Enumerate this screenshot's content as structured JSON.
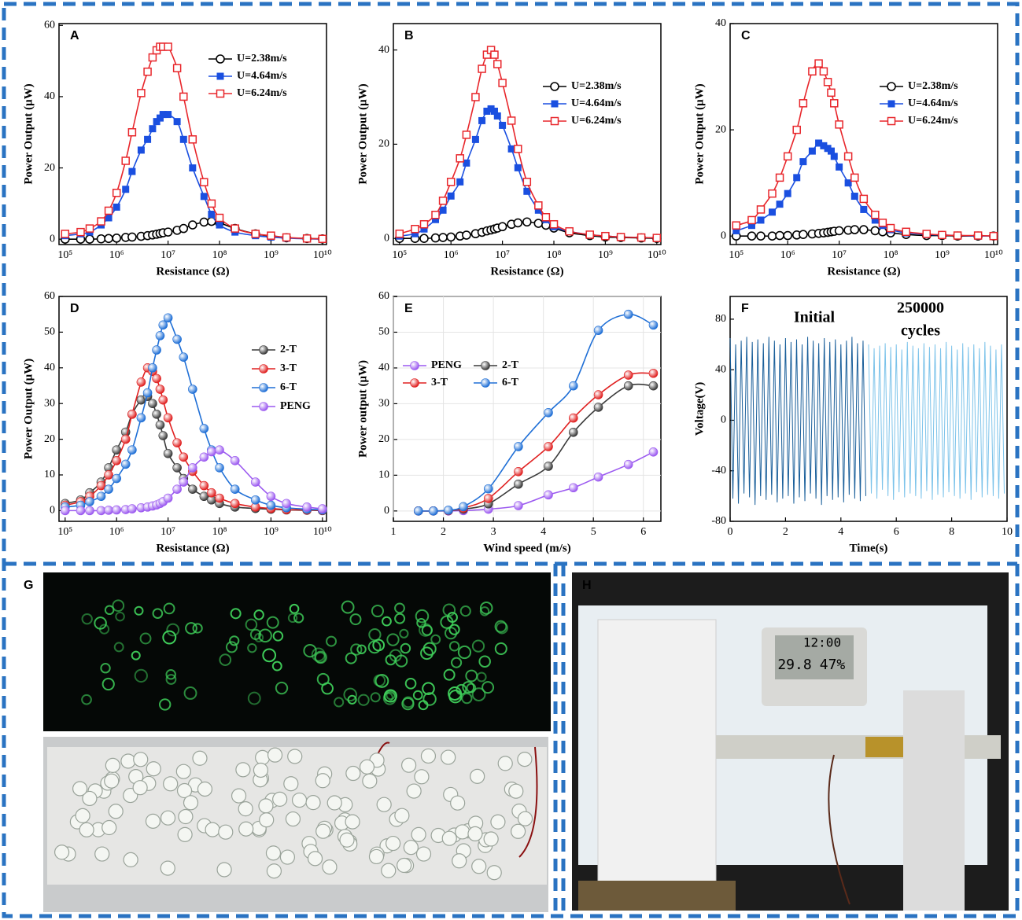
{
  "chart_data": [
    {
      "type": "line",
      "title": "A",
      "xscale": "log",
      "xlabel": "Resistance (Ω)",
      "ylabel": "Power Output (μW)",
      "legend": "upper right",
      "xlim": [
        76000,
        12000000000
      ],
      "ylim": [
        -1.5,
        60.5
      ],
      "xticks": [
        {
          "value": 100000,
          "label": "10⁵"
        },
        {
          "value": 1000000,
          "label": "10⁶"
        },
        {
          "value": 10000000,
          "label": "10⁷"
        },
        {
          "value": 100000000,
          "label": "10⁸"
        },
        {
          "value": 1000000000,
          "label": "10⁹"
        },
        {
          "value": 10000000000,
          "label": "10¹⁰"
        }
      ],
      "yticks": [
        0,
        20,
        40,
        60
      ],
      "x": [
        100000,
        200000,
        300000,
        500000,
        700000,
        1000000,
        1500000,
        2000000,
        3000000,
        4000000,
        5000000,
        6000000,
        7000000,
        8000000,
        10000000,
        15000000,
        20000000,
        30000000,
        50000000,
        70000000,
        100000000,
        200000000,
        500000000,
        1000000000,
        2000000000,
        5000000000,
        10000000000
      ],
      "series": [
        {
          "name": "U=2.38m/s",
          "color": "#000000",
          "marker": "circle-open",
          "values": [
            0,
            0,
            0,
            0.1,
            0.2,
            0.3,
            0.5,
            0.6,
            0.8,
            1,
            1.2,
            1.4,
            1.6,
            1.8,
            2,
            2.5,
            3,
            4,
            4.8,
            5,
            4.6,
            3,
            1.5,
            0.8,
            0.4,
            0.2,
            0.1
          ]
        },
        {
          "name": "U=4.64m/s",
          "color": "#1a4fe0",
          "marker": "square-filled",
          "values": [
            1,
            1.5,
            2,
            4,
            6,
            9,
            14,
            19,
            25,
            28,
            31,
            33,
            34,
            35,
            35,
            33,
            28,
            20,
            12,
            7,
            4,
            2,
            1,
            0.6,
            0.3,
            0.1,
            0
          ]
        },
        {
          "name": "U=6.24m/s",
          "color": "#e8262b",
          "marker": "square-open",
          "values": [
            1.5,
            2,
            3,
            5,
            8,
            13,
            22,
            30,
            41,
            47,
            51,
            53,
            54,
            54,
            54,
            48,
            40,
            28,
            16,
            10,
            6,
            3,
            1.5,
            1,
            0.5,
            0.2,
            0.1
          ]
        }
      ]
    },
    {
      "type": "line",
      "title": "B",
      "xscale": "log",
      "xlabel": "Resistance (Ω)",
      "ylabel": "Power Output (μW)",
      "legend": "upper right",
      "xlim": [
        76000,
        12000000000
      ],
      "ylim": [
        -1.3,
        45.6
      ],
      "xticks": [
        {
          "value": 100000,
          "label": "10⁵"
        },
        {
          "value": 1000000,
          "label": "10⁶"
        },
        {
          "value": 10000000,
          "label": "10⁷"
        },
        {
          "value": 100000000,
          "label": "10⁸"
        },
        {
          "value": 1000000000,
          "label": "10⁹"
        },
        {
          "value": 10000000000,
          "label": "10¹⁰"
        }
      ],
      "yticks": [
        0,
        20,
        40
      ],
      "x": [
        100000,
        200000,
        300000,
        500000,
        700000,
        1000000,
        1500000,
        2000000,
        3000000,
        4000000,
        5000000,
        6000000,
        7000000,
        8000000,
        10000000,
        15000000,
        20000000,
        30000000,
        50000000,
        70000000,
        100000000,
        200000000,
        500000000,
        1000000000,
        2000000000,
        5000000000,
        10000000000
      ],
      "series": [
        {
          "name": "U=2.38m/s",
          "color": "#000000",
          "marker": "circle-open",
          "values": [
            0,
            0,
            0,
            0.1,
            0.2,
            0.3,
            0.5,
            0.7,
            1,
            1.3,
            1.6,
            1.8,
            2,
            2.2,
            2.5,
            3,
            3.3,
            3.5,
            3.2,
            2.8,
            2.2,
            1.2,
            0.6,
            0.3,
            0.2,
            0.1,
            0
          ]
        },
        {
          "name": "U=4.64m/s",
          "color": "#1a4fe0",
          "marker": "square-filled",
          "values": [
            0.5,
            1,
            2,
            4,
            6,
            9,
            12,
            16,
            21,
            25,
            27,
            27.5,
            27,
            26,
            24,
            19,
            15,
            10,
            6,
            4,
            2.5,
            1.5,
            0.8,
            0.5,
            0.3,
            0.2,
            0.1
          ]
        },
        {
          "name": "U=6.24m/s",
          "color": "#e8262b",
          "marker": "square-open",
          "values": [
            1,
            2,
            3,
            5,
            8,
            12,
            17,
            22,
            30,
            36,
            39,
            40,
            39,
            37,
            33,
            25,
            19,
            12,
            7,
            4.5,
            3,
            1.5,
            0.8,
            0.5,
            0.3,
            0.2,
            0.1
          ]
        }
      ]
    },
    {
      "type": "line",
      "title": "C",
      "xscale": "log",
      "xlabel": "Resistance (Ω)",
      "ylabel": "Power Output (μW)",
      "legend": "upper right",
      "xlim": [
        76000,
        12000000000
      ],
      "ylim": [
        -1.6,
        40
      ],
      "xticks": [
        {
          "value": 100000,
          "label": "10⁵"
        },
        {
          "value": 1000000,
          "label": "10⁶"
        },
        {
          "value": 10000000,
          "label": "10⁷"
        },
        {
          "value": 100000000,
          "label": "10⁸"
        },
        {
          "value": 1000000000,
          "label": "10⁹"
        },
        {
          "value": 10000000000,
          "label": "10¹⁰"
        }
      ],
      "yticks": [
        0,
        20,
        40
      ],
      "x": [
        100000,
        200000,
        300000,
        500000,
        700000,
        1000000,
        1500000,
        2000000,
        3000000,
        4000000,
        5000000,
        6000000,
        7000000,
        8000000,
        10000000,
        15000000,
        20000000,
        30000000,
        50000000,
        70000000,
        100000000,
        200000000,
        500000000,
        1000000000,
        2000000000,
        5000000000,
        10000000000
      ],
      "series": [
        {
          "name": "U=2.38m/s",
          "color": "#000000",
          "marker": "circle-open",
          "values": [
            0,
            0,
            0,
            0,
            0.1,
            0.1,
            0.2,
            0.3,
            0.4,
            0.5,
            0.6,
            0.7,
            0.8,
            0.9,
            1,
            1.1,
            1.2,
            1.2,
            1,
            0.8,
            0.6,
            0.3,
            0.1,
            0.1,
            0,
            0,
            0
          ]
        },
        {
          "name": "U=4.64m/s",
          "color": "#1a4fe0",
          "marker": "square-filled",
          "values": [
            1,
            2,
            3,
            4.5,
            6,
            8,
            11,
            14,
            16,
            17.5,
            17,
            16.5,
            16,
            15,
            13,
            10,
            7.5,
            5,
            3,
            2,
            1.2,
            0.6,
            0.3,
            0.2,
            0.1,
            0,
            0
          ]
        },
        {
          "name": "U=6.24m/s",
          "color": "#e8262b",
          "marker": "square-open",
          "values": [
            2,
            3,
            5,
            8,
            11,
            15,
            20,
            25,
            31,
            32.5,
            31,
            29,
            27,
            25,
            21,
            15,
            11,
            7,
            4,
            2.5,
            1.5,
            0.8,
            0.4,
            0.2,
            0.1,
            0.1,
            0
          ]
        }
      ]
    },
    {
      "type": "line",
      "title": "D",
      "xscale": "log",
      "xlabel": "Resistance (Ω)",
      "ylabel": "Power Output (μW)",
      "legend": "center right",
      "xlim": [
        76000,
        12000000000
      ],
      "ylim": [
        -3,
        60
      ],
      "xticks": [
        {
          "value": 100000,
          "label": "10⁵"
        },
        {
          "value": 1000000,
          "label": "10⁶"
        },
        {
          "value": 10000000,
          "label": "10⁷"
        },
        {
          "value": 100000000,
          "label": "10⁸"
        },
        {
          "value": 1000000000,
          "label": "10⁹"
        },
        {
          "value": 10000000000,
          "label": "10¹⁰"
        }
      ],
      "yticks": [
        0,
        10,
        20,
        30,
        40,
        50,
        60
      ],
      "x": [
        100000,
        200000,
        300000,
        500000,
        700000,
        1000000,
        1500000,
        2000000,
        3000000,
        4000000,
        5000000,
        6000000,
        7000000,
        8000000,
        10000000,
        15000000,
        20000000,
        30000000,
        50000000,
        70000000,
        100000000,
        200000000,
        500000000,
        1000000000,
        2000000000,
        5000000000,
        10000000000
      ],
      "series": [
        {
          "name": "2-T",
          "color": "#3a3a3a",
          "marker": "sphere",
          "values": [
            2,
            3,
            5,
            8,
            12,
            17,
            22,
            27,
            31,
            32,
            30,
            27,
            24,
            21,
            16,
            12,
            9,
            6,
            4,
            3,
            2,
            1,
            0.6,
            0.4,
            0.2,
            0.1,
            0
          ]
        },
        {
          "name": "3-T",
          "color": "#e02020",
          "marker": "sphere",
          "values": [
            1.5,
            2.5,
            4,
            7,
            10,
            14,
            20,
            27,
            36,
            40,
            39,
            37,
            34,
            31,
            26,
            19,
            15,
            11,
            7,
            5,
            3.5,
            2,
            1,
            0.6,
            0.3,
            0.2,
            0.1
          ]
        },
        {
          "name": "6-T",
          "color": "#1f6fd6",
          "marker": "sphere",
          "values": [
            1,
            1.5,
            2.5,
            4,
            6,
            9,
            13,
            17,
            26,
            33,
            40,
            45,
            49,
            52,
            54,
            48,
            43,
            34,
            23,
            17,
            12,
            6,
            3,
            1.5,
            0.8,
            0.4,
            0.2
          ]
        },
        {
          "name": "PENG",
          "color": "#9b59f0",
          "marker": "sphere",
          "values": [
            0,
            0,
            0,
            0,
            0.1,
            0.2,
            0.3,
            0.5,
            0.8,
            1,
            1.3,
            1.6,
            2,
            2.5,
            3.5,
            6,
            8,
            12,
            15,
            16.5,
            17,
            14,
            8,
            4,
            2,
            1,
            0.5
          ]
        }
      ]
    },
    {
      "type": "line",
      "title": "E",
      "xlabel": "Wind speed (m/s)",
      "ylabel": "Power output (μW)",
      "legend": "upper left",
      "legend_columns": 2,
      "grid": true,
      "smooth": true,
      "xlim": [
        1,
        6.35
      ],
      "ylim": [
        -2.9,
        60
      ],
      "xticks": [
        1,
        2,
        3,
        4,
        5,
        6
      ],
      "yticks": [
        0,
        10,
        20,
        30,
        40,
        50,
        60
      ],
      "x": [
        1.5,
        1.8,
        2.1,
        2.4,
        2.9,
        3.5,
        4.1,
        4.6,
        5.1,
        5.7,
        6.2
      ],
      "series": [
        {
          "name": "PENG",
          "color": "#9b59f0",
          "marker": "sphere",
          "values": [
            0,
            0,
            0,
            0.1,
            0.5,
            1.5,
            4.5,
            6.5,
            9.5,
            13,
            16.5
          ]
        },
        {
          "name": "2-T",
          "color": "#3a3a3a",
          "marker": "sphere",
          "values": [
            0,
            0,
            0.1,
            0.5,
            2,
            7.5,
            12.5,
            22,
            29,
            35,
            35
          ]
        },
        {
          "name": "3-T",
          "color": "#e02020",
          "marker": "sphere",
          "values": [
            0,
            0,
            0.1,
            0.8,
            3.5,
            11,
            18,
            26,
            32.5,
            38,
            38.5
          ]
        },
        {
          "name": "6-T",
          "color": "#1f6fd6",
          "marker": "sphere",
          "values": [
            0,
            0,
            0.2,
            1.2,
            6.2,
            18,
            27.5,
            35,
            50.5,
            55,
            52
          ]
        }
      ]
    },
    {
      "type": "line",
      "title": "F",
      "xlabel": "Time(s)",
      "ylabel": "Voltage(V)",
      "xlim": [
        0,
        10
      ],
      "ylim": [
        -80,
        98
      ],
      "xticks": [
        0,
        2,
        4,
        6,
        8,
        10
      ],
      "yticks": [
        -80,
        -40,
        0,
        40,
        80
      ],
      "annotations": [
        "Initial",
        "250000",
        "cycles"
      ],
      "series": [
        {
          "color": "#1a5f9a",
          "x": [
            0,
            0.1,
            0.2,
            0.3,
            0.4,
            0.5,
            0.6,
            0.7,
            0.8,
            0.9,
            1,
            1.1,
            1.2,
            1.3,
            1.4,
            1.5,
            1.6,
            1.7,
            1.8,
            1.9,
            2,
            2.1,
            2.2,
            2.3,
            2.4,
            2.5,
            2.6,
            2.7,
            2.8,
            2.9,
            3,
            3.1,
            3.2,
            3.3,
            3.4,
            3.5,
            3.6,
            3.7,
            3.8,
            3.9,
            4,
            4.1,
            4.2,
            4.3,
            4.4,
            4.5,
            4.6,
            4.7,
            4.8,
            4.9
          ],
          "values": [
            65,
            -62,
            60,
            -66,
            63,
            -58,
            66,
            -61,
            62,
            -67,
            64,
            -60,
            61,
            -63,
            66,
            -59,
            63,
            -65,
            60,
            -62,
            65,
            -60,
            62,
            -66,
            64,
            -61,
            60,
            -64,
            66,
            -58,
            63,
            -62,
            61,
            -67,
            65,
            -60,
            62,
            -63,
            64,
            -61,
            60,
            -65,
            63,
            -59,
            66,
            -62,
            61,
            -64,
            63,
            -60
          ]
        },
        {
          "color": "#7cc3ea",
          "x": [
            5,
            5.1,
            5.2,
            5.3,
            5.4,
            5.5,
            5.6,
            5.7,
            5.8,
            5.9,
            6,
            6.1,
            6.2,
            6.3,
            6.4,
            6.5,
            6.6,
            6.7,
            6.8,
            6.9,
            7,
            7.1,
            7.2,
            7.3,
            7.4,
            7.5,
            7.6,
            7.7,
            7.8,
            7.9,
            8,
            8.1,
            8.2,
            8.3,
            8.4,
            8.5,
            8.6,
            8.7,
            8.8,
            8.9,
            9,
            9.1,
            9.2,
            9.3,
            9.4,
            9.5,
            9.6,
            9.7,
            9.8,
            9.9
          ],
          "values": [
            60,
            -58,
            57,
            -62,
            59,
            -55,
            61,
            -60,
            58,
            -63,
            60,
            -57,
            56,
            -61,
            62,
            -58,
            59,
            -60,
            57,
            -62,
            61,
            -56,
            58,
            -63,
            60,
            -59,
            57,
            -61,
            62,
            -57,
            59,
            -60,
            56,
            -62,
            61,
            -58,
            58,
            -63,
            60,
            -57,
            57,
            -61,
            62,
            -59,
            59,
            -60,
            56,
            -62,
            60,
            -58
          ]
        }
      ]
    }
  ],
  "photos": {
    "g_label": "G",
    "h_label": "H",
    "clock": {
      "time": "12:00",
      "temperature": "29.8",
      "humidity": "47%"
    }
  }
}
